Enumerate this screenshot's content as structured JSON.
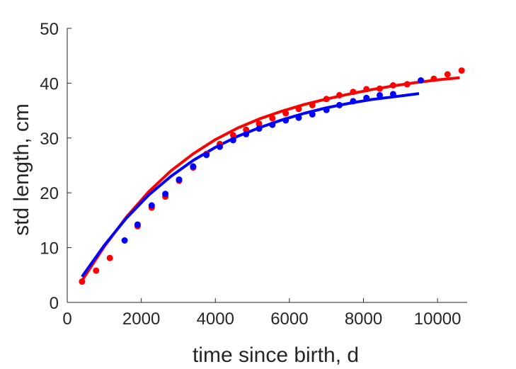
{
  "chart_data": {
    "type": "scatter",
    "title": "",
    "xlabel": "time since birth, d",
    "ylabel": "std length, cm",
    "xlim": [
      0,
      10800
    ],
    "ylim": [
      0,
      50
    ],
    "xticks": [
      0,
      2000,
      4000,
      6000,
      8000,
      10000
    ],
    "yticks": [
      0,
      10,
      20,
      30,
      40,
      50
    ],
    "grid": false,
    "legend": "none",
    "series": [
      {
        "color": "#ff0000",
        "kind": "points",
        "x": [
          400,
          780,
          1150,
          1900,
          2280,
          2650,
          3020,
          3400,
          3760,
          4120,
          4480,
          4830,
          5180,
          5540,
          5900,
          6250,
          6620,
          7000,
          7350,
          7720,
          8080,
          8440,
          8800,
          9180,
          9900,
          10270,
          10650
        ],
        "y": [
          3.8,
          5.8,
          8.1,
          13.9,
          17.3,
          19.3,
          22.2,
          24.6,
          27.1,
          28.9,
          30.5,
          31.5,
          32.6,
          33.6,
          34.5,
          35.3,
          36.0,
          37.1,
          37.8,
          38.4,
          38.9,
          39.0,
          39.6,
          39.8,
          40.8,
          41.6,
          42.3
        ]
      },
      {
        "color": "#0000ff",
        "kind": "points",
        "x": [
          1550,
          1900,
          2280,
          2650,
          3020,
          3400,
          3760,
          4120,
          4480,
          4830,
          5180,
          5540,
          5900,
          6250,
          6620,
          7000,
          7350,
          7720,
          8080,
          8440,
          8800,
          9550
        ],
        "y": [
          11.3,
          14.2,
          17.7,
          19.8,
          22.4,
          24.8,
          26.9,
          28.4,
          29.6,
          30.7,
          31.7,
          32.4,
          33.2,
          33.7,
          34.3,
          35.1,
          36.0,
          36.7,
          37.3,
          37.8,
          38.0,
          40.5
        ]
      },
      {
        "color": "#ff0000",
        "kind": "line",
        "x": [
          400,
          1000,
          1600,
          2200,
          2800,
          3400,
          4000,
          4600,
          5200,
          5800,
          6400,
          7000,
          7600,
          8200,
          8800,
          9400,
          10000,
          10600
        ],
        "y": [
          4.0,
          10.2,
          15.6,
          20.2,
          24.0,
          27.1,
          29.7,
          31.8,
          33.5,
          34.9,
          36.1,
          37.1,
          38.0,
          38.8,
          39.5,
          40.1,
          40.6,
          41.0
        ]
      },
      {
        "color": "#0000ff",
        "kind": "line",
        "x": [
          400,
          1000,
          1600,
          2200,
          2800,
          3400,
          4000,
          4600,
          5200,
          5800,
          6400,
          7000,
          7600,
          8200,
          8800,
          9500
        ],
        "y": [
          4.7,
          10.4,
          15.4,
          19.6,
          23.0,
          25.9,
          28.3,
          30.3,
          31.9,
          33.3,
          34.5,
          35.5,
          36.3,
          37.0,
          37.5,
          38.1
        ]
      }
    ]
  }
}
